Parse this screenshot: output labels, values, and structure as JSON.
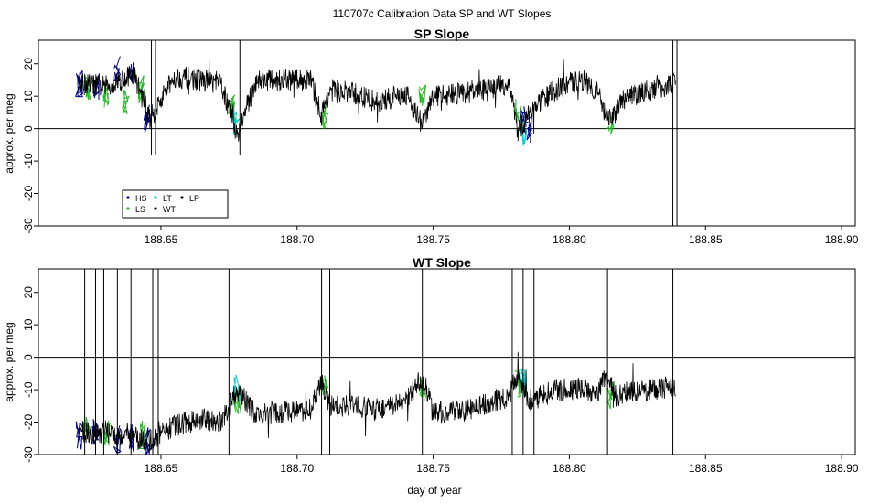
{
  "page_title": "110707c   Calibration Data SP and WT Slopes",
  "colors": {
    "HS": "#00008b",
    "LS": "#22bb22",
    "LT": "#00ced1",
    "WT": "#000000",
    "LP": "#000000",
    "axis": "#000000",
    "zero_line": "#000000"
  },
  "legend": {
    "placement": "bottom-left of SP panel",
    "entries": [
      "HS",
      "LT",
      "LP",
      "LS",
      "WT"
    ]
  },
  "chart_data": [
    {
      "type": "line",
      "title": "SP Slope",
      "xlabel": "",
      "ylabel": "approx. per meg",
      "xlim": [
        188.605,
        188.905
      ],
      "ylim": [
        -30,
        25
      ],
      "x_ticks": [
        "188.65",
        "188.70",
        "188.75",
        "188.80",
        "188.85",
        "188.90"
      ],
      "x_tick_values": [
        188.65,
        188.7,
        188.75,
        188.8,
        188.85,
        188.9
      ],
      "y_ticks": [
        "-30",
        "-20",
        "-10",
        "0",
        "10",
        "20"
      ],
      "y_tick_values": [
        -30,
        -20,
        -10,
        0,
        10,
        20
      ],
      "hline": 0,
      "series": [
        {
          "name": "WT",
          "x": [
            188.62,
            188.63,
            188.64,
            188.646,
            188.655,
            188.665,
            188.672,
            188.678,
            188.685,
            188.695,
            188.705,
            188.709,
            188.712,
            188.72,
            188.73,
            188.74,
            188.746,
            188.75,
            188.76,
            188.77,
            188.778,
            188.781,
            188.785,
            188.79,
            188.795,
            188.8,
            188.805,
            188.81,
            188.814,
            188.817,
            188.82,
            188.83,
            188.839
          ],
          "y": [
            14,
            13,
            17,
            3,
            16,
            15,
            14,
            -2,
            15,
            15,
            15,
            4,
            12,
            11,
            8,
            11,
            1,
            10,
            11,
            12,
            14,
            -1,
            4,
            9,
            12,
            14,
            15,
            12,
            2,
            5,
            9,
            12,
            14
          ]
        },
        {
          "name": "HS",
          "x": [
            188.62,
            188.626,
            188.634,
            188.639,
            188.645,
            188.783,
            188.785
          ],
          "y": [
            14,
            13,
            18,
            18,
            3,
            3,
            0
          ]
        },
        {
          "name": "LS",
          "x": [
            188.623,
            188.63,
            188.637,
            188.643,
            188.676,
            188.71,
            188.746,
            188.781,
            188.815
          ],
          "y": [
            12,
            11,
            9,
            12,
            6,
            4,
            10,
            5,
            2
          ]
        },
        {
          "name": "LT",
          "x": [
            188.678,
            188.783
          ],
          "y": [
            2,
            -2
          ]
        }
      ]
    },
    {
      "type": "line",
      "title": "WT Slope",
      "xlabel": "day of year",
      "ylabel": "approx. per meg",
      "xlim": [
        188.605,
        188.905
      ],
      "ylim": [
        -30,
        25
      ],
      "x_ticks": [
        "188.65",
        "188.70",
        "188.75",
        "188.80",
        "188.85",
        "188.90"
      ],
      "x_tick_values": [
        188.65,
        188.7,
        188.75,
        188.8,
        188.85,
        188.9
      ],
      "y_ticks": [
        "-30",
        "-20",
        "-10",
        "0",
        "10",
        "20"
      ],
      "y_tick_values": [
        -30,
        -20,
        -10,
        0,
        10,
        20
      ],
      "hline": 0,
      "spikes_x": [
        188.622,
        188.626,
        188.629,
        188.634,
        188.639,
        188.647,
        188.649,
        188.675,
        188.709,
        188.712,
        188.746,
        188.779,
        188.783,
        188.787,
        188.814,
        188.838
      ],
      "series": [
        {
          "name": "WT",
          "x": [
            188.62,
            188.63,
            188.64,
            188.646,
            188.655,
            188.665,
            188.672,
            188.678,
            188.685,
            188.695,
            188.705,
            188.709,
            188.712,
            188.72,
            188.73,
            188.74,
            188.746,
            188.75,
            188.76,
            188.77,
            188.778,
            188.781,
            188.785,
            188.79,
            188.795,
            188.8,
            188.805,
            188.81,
            188.814,
            188.817,
            188.82,
            188.83,
            188.839
          ],
          "y": [
            -23,
            -23,
            -25,
            -26,
            -21,
            -19,
            -20,
            -10,
            -18,
            -17,
            -16,
            -8,
            -15,
            -15,
            -16,
            -14,
            -6,
            -17,
            -17,
            -14,
            -12,
            -5,
            -13,
            -12,
            -10,
            -10,
            -9,
            -12,
            -5,
            -12,
            -11,
            -10,
            -9
          ]
        },
        {
          "name": "HS",
          "x": [
            188.62,
            188.626,
            188.634,
            188.639,
            188.645
          ],
          "y": [
            -24,
            -23,
            -25,
            -25,
            -26
          ]
        },
        {
          "name": "LS",
          "x": [
            188.623,
            188.63,
            188.643,
            188.678,
            188.71,
            188.746,
            188.781,
            188.815
          ],
          "y": [
            -22,
            -23,
            -24,
            -13,
            -10,
            -10,
            -8,
            -12
          ]
        },
        {
          "name": "LT",
          "x": [
            188.678,
            188.783
          ],
          "y": [
            -10,
            -8
          ]
        }
      ]
    }
  ]
}
